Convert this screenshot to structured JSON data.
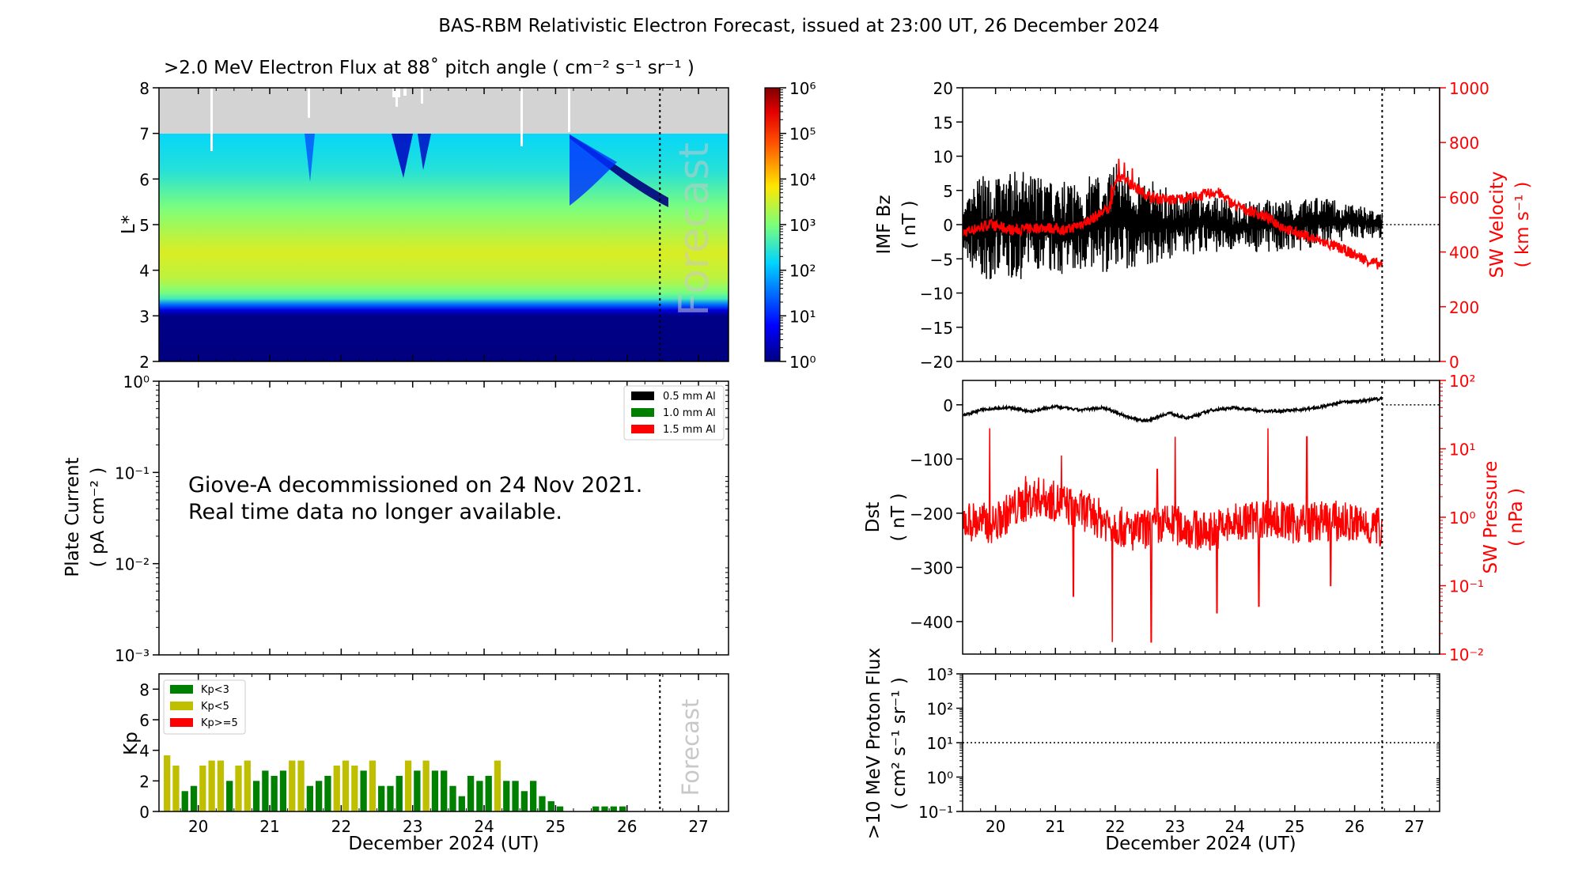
{
  "figure_title": "BAS-RBM Relativistic Electron Forecast, issued at 23:00 UT, 26 December 2024",
  "colors": {
    "imf": "#000000",
    "velocity": "#ff0000",
    "dst": "#000000",
    "pressure": "#ff0000",
    "kp_low": "#008000",
    "kp_mid": "#bfbf00",
    "kp_high": "#ff0000",
    "flux_nodata": "#d3d3d3",
    "forecast_text": "#c8c8c8"
  },
  "chart_data": [
    {
      "id": "flux",
      "type": "heatmap",
      "title": ">2.0 MeV Electron Flux at 88˚ pitch angle ( cm⁻² s⁻¹ sr⁻¹ )",
      "ylabel": "L*",
      "xlim": [
        19.45,
        27.42
      ],
      "ylim": [
        2,
        8
      ],
      "yticks": [
        "2",
        "3",
        "4",
        "5",
        "6",
        "7",
        "8"
      ],
      "forecast_line": 26.46,
      "forecast_label": "Forecast",
      "data_ceiling_L": 7,
      "profile": [
        [
          2,
          0.0
        ],
        [
          3.05,
          0.05
        ],
        [
          3.25,
          1.5
        ],
        [
          3.4,
          2.8
        ],
        [
          3.8,
          3.4
        ],
        [
          4.4,
          3.6
        ],
        [
          5.2,
          3.1
        ],
        [
          6.2,
          2.4
        ],
        [
          7,
          2.2
        ]
      ],
      "colorbar": {
        "scale": "log",
        "range": [
          1,
          1000000
        ],
        "ticks": [
          "10⁰",
          "10¹",
          "10²",
          "10³",
          "10⁴",
          "10⁵",
          "10⁶"
        ]
      }
    },
    {
      "id": "plate",
      "type": "line",
      "ylabel_line1": "Plate Current",
      "ylabel_line2": "( pA cm⁻² )",
      "yscale": "log",
      "ylim": [
        0.001,
        1
      ],
      "yticks": [
        "10⁻³",
        "10⁻²",
        "10⁻¹",
        "10⁰"
      ],
      "note_line1": "Giove-A decommissioned on 24 Nov 2021.",
      "note_line2": "Real time data no longer available.",
      "legend": [
        "0.5 mm Al",
        "1.0 mm Al",
        "1.5 mm Al"
      ],
      "legend_position": "top-right"
    },
    {
      "id": "kp",
      "type": "bar",
      "ylabel": "Kp",
      "ylim": [
        0,
        9
      ],
      "yticks": [
        "0",
        "2",
        "4",
        "6",
        "8"
      ],
      "xlabel": "December 2024 (UT)",
      "xticks": [
        "20",
        "21",
        "22",
        "23",
        "24",
        "25",
        "26",
        "27"
      ],
      "forecast_label": "Forecast",
      "legend": [
        "Kp<3",
        "Kp<5",
        "Kp>=5"
      ],
      "legend_position": "top-left",
      "bar_start": 19.5,
      "bar_width_days": 0.125,
      "values": [
        3.67,
        3.0,
        1.33,
        1.67,
        3.0,
        3.33,
        3.33,
        2.0,
        3.0,
        3.33,
        2.0,
        2.67,
        2.33,
        2.67,
        3.33,
        3.33,
        1.67,
        2.0,
        2.33,
        3.0,
        3.33,
        3.0,
        2.67,
        3.33,
        1.67,
        1.67,
        2.33,
        3.33,
        2.67,
        3.33,
        2.67,
        2.67,
        1.67,
        1.0,
        2.33,
        2.0,
        2.33,
        3.33,
        2.0,
        2.0,
        1.33,
        2.0,
        1.0,
        0.67,
        0.33,
        0,
        0,
        0,
        0.33,
        0.33,
        0.33,
        0.33
      ]
    },
    {
      "id": "imf",
      "type": "line",
      "ylabel_line1": "IMF Bz",
      "ylabel_line2": "( nT )",
      "ylim": [
        -20,
        20
      ],
      "yticks": [
        "−20",
        "−15",
        "−10",
        "−5",
        "0",
        "5",
        "10",
        "15",
        "20"
      ],
      "right_ylabel_line1": "SW Velocity",
      "right_ylabel_line2": "( km s⁻¹ )",
      "right_ylim": [
        0,
        1000
      ],
      "right_yticks": [
        "0",
        "200",
        "400",
        "600",
        "800",
        "1000"
      ],
      "forecast_line": 26.46,
      "data_end": 26.46,
      "bz_envelope": [
        [
          19.45,
          -4,
          2
        ],
        [
          19.7,
          -8,
          7
        ],
        [
          20.5,
          -8,
          8
        ],
        [
          21.0,
          -7,
          6
        ],
        [
          21.5,
          -8,
          7
        ],
        [
          22.0,
          -7,
          9
        ],
        [
          22.5,
          -6,
          7
        ],
        [
          23.0,
          -5,
          5
        ],
        [
          23.5,
          -4,
          5
        ],
        [
          24.0,
          -4,
          3
        ],
        [
          24.5,
          -4,
          4
        ],
        [
          25.0,
          -4,
          4
        ],
        [
          25.5,
          -3,
          4
        ],
        [
          26.0,
          -2,
          3
        ],
        [
          26.46,
          -2,
          2
        ]
      ],
      "velocity": [
        [
          19.45,
          470
        ],
        [
          19.9,
          500
        ],
        [
          20.3,
          480
        ],
        [
          20.8,
          490
        ],
        [
          21.2,
          480
        ],
        [
          21.6,
          520
        ],
        [
          21.9,
          560
        ],
        [
          22.05,
          680
        ],
        [
          22.3,
          640
        ],
        [
          22.6,
          600
        ],
        [
          22.9,
          590
        ],
        [
          23.3,
          600
        ],
        [
          23.7,
          620
        ],
        [
          24.0,
          570
        ],
        [
          24.5,
          530
        ],
        [
          24.9,
          480
        ],
        [
          25.3,
          450
        ],
        [
          25.8,
          410
        ],
        [
          26.2,
          370
        ],
        [
          26.46,
          350
        ]
      ]
    },
    {
      "id": "dst",
      "type": "line",
      "ylabel_line1": "Dst",
      "ylabel_line2": "( nT )",
      "ylim": [
        -460,
        45
      ],
      "yticks": [
        "−400",
        "−300",
        "−200",
        "−100",
        "0"
      ],
      "right_ylabel_line1": "SW Pressure",
      "right_ylabel_line2": "( nPa )",
      "right_yscale": "log",
      "right_ylim": [
        0.01,
        100
      ],
      "right_yticks": [
        "10⁻²",
        "10⁻¹",
        "10⁰",
        "10¹",
        "10²"
      ],
      "forecast_line": 26.46,
      "data_end": 26.46,
      "dst": [
        [
          19.45,
          -20
        ],
        [
          19.8,
          -8
        ],
        [
          20.2,
          -5
        ],
        [
          20.6,
          -12
        ],
        [
          21.0,
          -3
        ],
        [
          21.4,
          -10
        ],
        [
          21.8,
          -5
        ],
        [
          22.2,
          -22
        ],
        [
          22.5,
          -30
        ],
        [
          22.9,
          -15
        ],
        [
          23.2,
          -25
        ],
        [
          23.6,
          -10
        ],
        [
          24.0,
          -5
        ],
        [
          24.5,
          -12
        ],
        [
          25.0,
          -10
        ],
        [
          25.4,
          -5
        ],
        [
          25.8,
          5
        ],
        [
          26.2,
          8
        ],
        [
          26.46,
          12
        ]
      ],
      "pressure_base": [
        [
          19.45,
          0.9
        ],
        [
          20.0,
          0.8
        ],
        [
          20.7,
          2.0
        ],
        [
          21.2,
          1.5
        ],
        [
          21.8,
          0.9
        ],
        [
          22.3,
          0.6
        ],
        [
          22.9,
          0.8
        ],
        [
          23.5,
          0.6
        ],
        [
          24.0,
          0.8
        ],
        [
          24.5,
          1.0
        ],
        [
          25.0,
          0.8
        ],
        [
          25.6,
          0.9
        ],
        [
          26.46,
          0.7
        ]
      ],
      "pressure_spikes": [
        [
          19.9,
          20
        ],
        [
          20.5,
          4
        ],
        [
          21.1,
          8
        ],
        [
          21.3,
          0.07
        ],
        [
          21.95,
          0.015
        ],
        [
          22.6,
          0.015
        ],
        [
          22.7,
          5
        ],
        [
          23.0,
          15
        ],
        [
          23.7,
          0.04
        ],
        [
          24.4,
          0.05
        ],
        [
          24.55,
          20
        ],
        [
          25.2,
          15
        ],
        [
          25.6,
          0.1
        ]
      ]
    },
    {
      "id": "proton",
      "type": "line",
      "ylabel_line1": ">10 MeV Proton Flux",
      "ylabel_line2": "( cm² s⁻¹ sr⁻¹ )",
      "yscale": "log",
      "ylim": [
        0.1,
        1000
      ],
      "yticks": [
        "10⁻¹",
        "10⁰",
        "10¹",
        "10²",
        "10³"
      ],
      "threshold": 10,
      "forecast_line": 26.46,
      "xlabel": "December 2024 (UT)",
      "xticks": [
        "20",
        "21",
        "22",
        "23",
        "24",
        "25",
        "26",
        "27"
      ]
    }
  ]
}
